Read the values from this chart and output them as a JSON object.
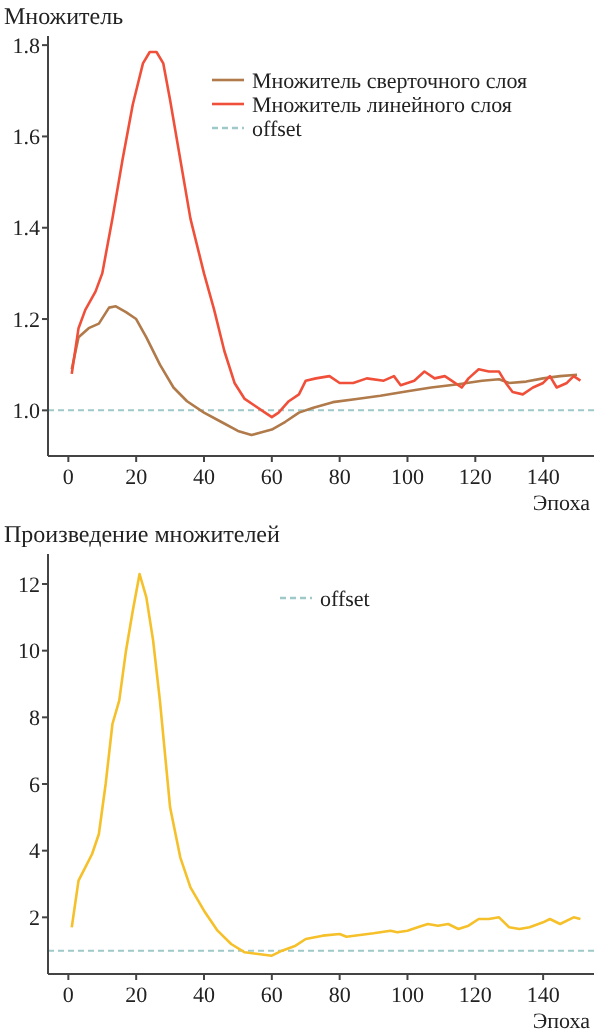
{
  "chart_data": [
    {
      "type": "line",
      "ylabel": "Множитель",
      "xlabel": "Эпоха",
      "xlim": [
        -6,
        155
      ],
      "xticks": [
        0,
        20,
        40,
        60,
        80,
        100,
        120,
        140
      ],
      "ylim": [
        0.9,
        1.82
      ],
      "yticks": [
        {
          "value": 1.0,
          "label": "1.0"
        },
        1.2,
        1.4,
        1.6,
        1.8
      ],
      "legend": "top right",
      "grid": false,
      "series": [
        {
          "name": "Множитель сверточного слоя",
          "color": "#b07a4a",
          "x": [
            1,
            3,
            6,
            9,
            12,
            14,
            17,
            20,
            23,
            27,
            31,
            35,
            40,
            45,
            50,
            54,
            57,
            60,
            64,
            68,
            72,
            78,
            85,
            92,
            100,
            107,
            115,
            122,
            127,
            130,
            135,
            140,
            145,
            150
          ],
          "values": [
            1.09,
            1.16,
            1.18,
            1.19,
            1.225,
            1.228,
            1.215,
            1.2,
            1.16,
            1.1,
            1.05,
            1.02,
            0.995,
            0.975,
            0.955,
            0.946,
            0.952,
            0.958,
            0.975,
            0.995,
            1.005,
            1.018,
            1.025,
            1.032,
            1.042,
            1.05,
            1.057,
            1.065,
            1.068,
            1.06,
            1.063,
            1.07,
            1.075,
            1.078
          ]
        },
        {
          "name": "Множитель линейного слоя",
          "color": "#f0503a",
          "x": [
            1,
            3,
            5,
            8,
            10,
            13,
            16,
            19,
            22,
            24,
            26,
            28,
            30,
            33,
            36,
            40,
            43,
            46,
            49,
            52,
            55,
            58,
            60,
            62,
            65,
            68,
            70,
            73,
            77,
            80,
            84,
            88,
            93,
            96,
            98,
            102,
            105,
            108,
            111,
            113,
            116,
            118,
            121,
            124,
            127,
            129,
            131,
            134,
            137,
            140,
            142,
            144,
            147,
            149,
            151
          ],
          "values": [
            1.08,
            1.18,
            1.22,
            1.26,
            1.3,
            1.42,
            1.55,
            1.67,
            1.76,
            1.785,
            1.785,
            1.76,
            1.68,
            1.55,
            1.42,
            1.3,
            1.22,
            1.13,
            1.06,
            1.025,
            1.01,
            0.995,
            0.985,
            0.995,
            1.02,
            1.035,
            1.065,
            1.07,
            1.075,
            1.06,
            1.06,
            1.07,
            1.065,
            1.075,
            1.055,
            1.065,
            1.085,
            1.07,
            1.075,
            1.065,
            1.05,
            1.07,
            1.09,
            1.085,
            1.085,
            1.06,
            1.04,
            1.035,
            1.05,
            1.06,
            1.075,
            1.05,
            1.06,
            1.075,
            1.065
          ]
        }
      ],
      "ref_lines": [
        {
          "axis": "y",
          "value": 1,
          "label": "offset",
          "color": "#9fc9c9",
          "line_style": "dashed"
        }
      ]
    },
    {
      "type": "line",
      "ylabel": "Произведение множителей",
      "xlabel": "Эпоха",
      "xlim": [
        -6,
        155
      ],
      "xticks": [
        0,
        20,
        40,
        60,
        80,
        100,
        120,
        140
      ],
      "ylim": [
        0.3,
        12.9
      ],
      "yticks": [
        2,
        4,
        6,
        8,
        10,
        12
      ],
      "legend": "top",
      "grid": false,
      "series": [
        {
          "color": "#f5c02a",
          "x": [
            1,
            3,
            5,
            7,
            9,
            11,
            13,
            15,
            17,
            19,
            21,
            23,
            25,
            27,
            30,
            33,
            36,
            40,
            44,
            48,
            52,
            56,
            60,
            63,
            67,
            70,
            75,
            80,
            82,
            86,
            90,
            95,
            97,
            100,
            103,
            106,
            109,
            112,
            115,
            118,
            121,
            124,
            127,
            130,
            133,
            136,
            140,
            142,
            145,
            149,
            151
          ],
          "values": [
            1.7,
            3.1,
            3.5,
            3.9,
            4.5,
            6.0,
            7.8,
            8.5,
            10,
            11.2,
            12.3,
            11.6,
            10.3,
            8.5,
            5.3,
            3.8,
            2.9,
            2.2,
            1.6,
            1.2,
            0.95,
            0.9,
            0.85,
            1.0,
            1.15,
            1.35,
            1.45,
            1.5,
            1.42,
            1.47,
            1.52,
            1.6,
            1.55,
            1.6,
            1.7,
            1.8,
            1.75,
            1.8,
            1.65,
            1.75,
            1.95,
            1.95,
            2.0,
            1.7,
            1.65,
            1.7,
            1.85,
            1.95,
            1.8,
            2.0,
            1.95
          ]
        }
      ],
      "ref_lines": [
        {
          "axis": "y",
          "value": 1,
          "label": "offset",
          "color": "#9fc9c9",
          "line_style": "dashed"
        }
      ]
    }
  ]
}
